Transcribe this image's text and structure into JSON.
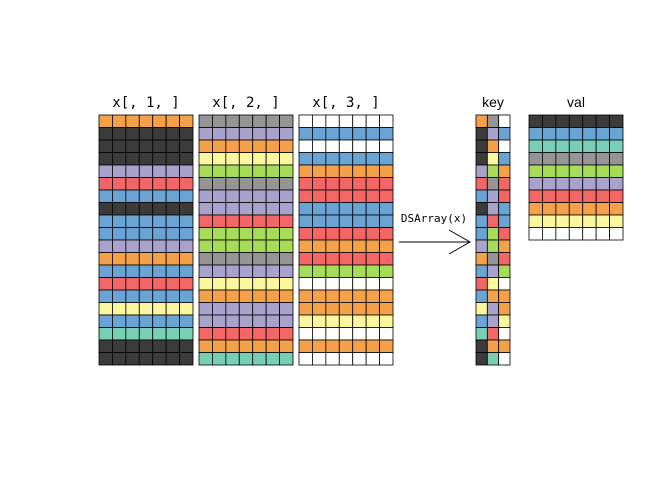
{
  "palette": {
    "0": "#ffffff",
    "1": "#3b3b3b",
    "2": "#f4a14a",
    "3": "#a9a2cc",
    "4": "#f26666",
    "5": "#6aa4d4",
    "6": "#fbf79f",
    "7": "#77cfb5",
    "8": "#959595",
    "9": "#a6dc58"
  },
  "slices": [
    {
      "label": "x[, 1, ]",
      "rows": [
        2,
        1,
        1,
        1,
        3,
        4,
        5,
        1,
        5,
        5,
        3,
        2,
        5,
        4,
        5,
        6,
        5,
        7,
        1,
        1
      ]
    },
    {
      "label": "x[, 2, ]",
      "rows": [
        8,
        3,
        2,
        6,
        9,
        8,
        3,
        3,
        4,
        9,
        9,
        8,
        3,
        6,
        2,
        3,
        3,
        4,
        2,
        7
      ]
    },
    {
      "label": "x[, 3, ]",
      "rows": [
        0,
        5,
        0,
        5,
        2,
        4,
        4,
        5,
        5,
        4,
        2,
        4,
        9,
        0,
        2,
        2,
        6,
        0,
        2,
        0
      ]
    }
  ],
  "arrow_label": "DSArray(x)",
  "key": {
    "label": "key",
    "rows": [
      [
        2,
        8,
        0
      ],
      [
        1,
        3,
        5
      ],
      [
        1,
        2,
        0
      ],
      [
        1,
        6,
        5
      ],
      [
        3,
        9,
        2
      ],
      [
        4,
        8,
        4
      ],
      [
        5,
        3,
        4
      ],
      [
        1,
        3,
        5
      ],
      [
        5,
        4,
        5
      ],
      [
        5,
        9,
        4
      ],
      [
        3,
        9,
        2
      ],
      [
        2,
        8,
        4
      ],
      [
        5,
        3,
        9
      ],
      [
        4,
        6,
        0
      ],
      [
        5,
        2,
        2
      ],
      [
        6,
        3,
        2
      ],
      [
        5,
        3,
        6
      ],
      [
        7,
        4,
        0
      ],
      [
        1,
        2,
        2
      ],
      [
        1,
        7,
        0
      ]
    ]
  },
  "val": {
    "label": "val",
    "rows": [
      1,
      5,
      7,
      8,
      9,
      3,
      4,
      2,
      6,
      0
    ]
  }
}
